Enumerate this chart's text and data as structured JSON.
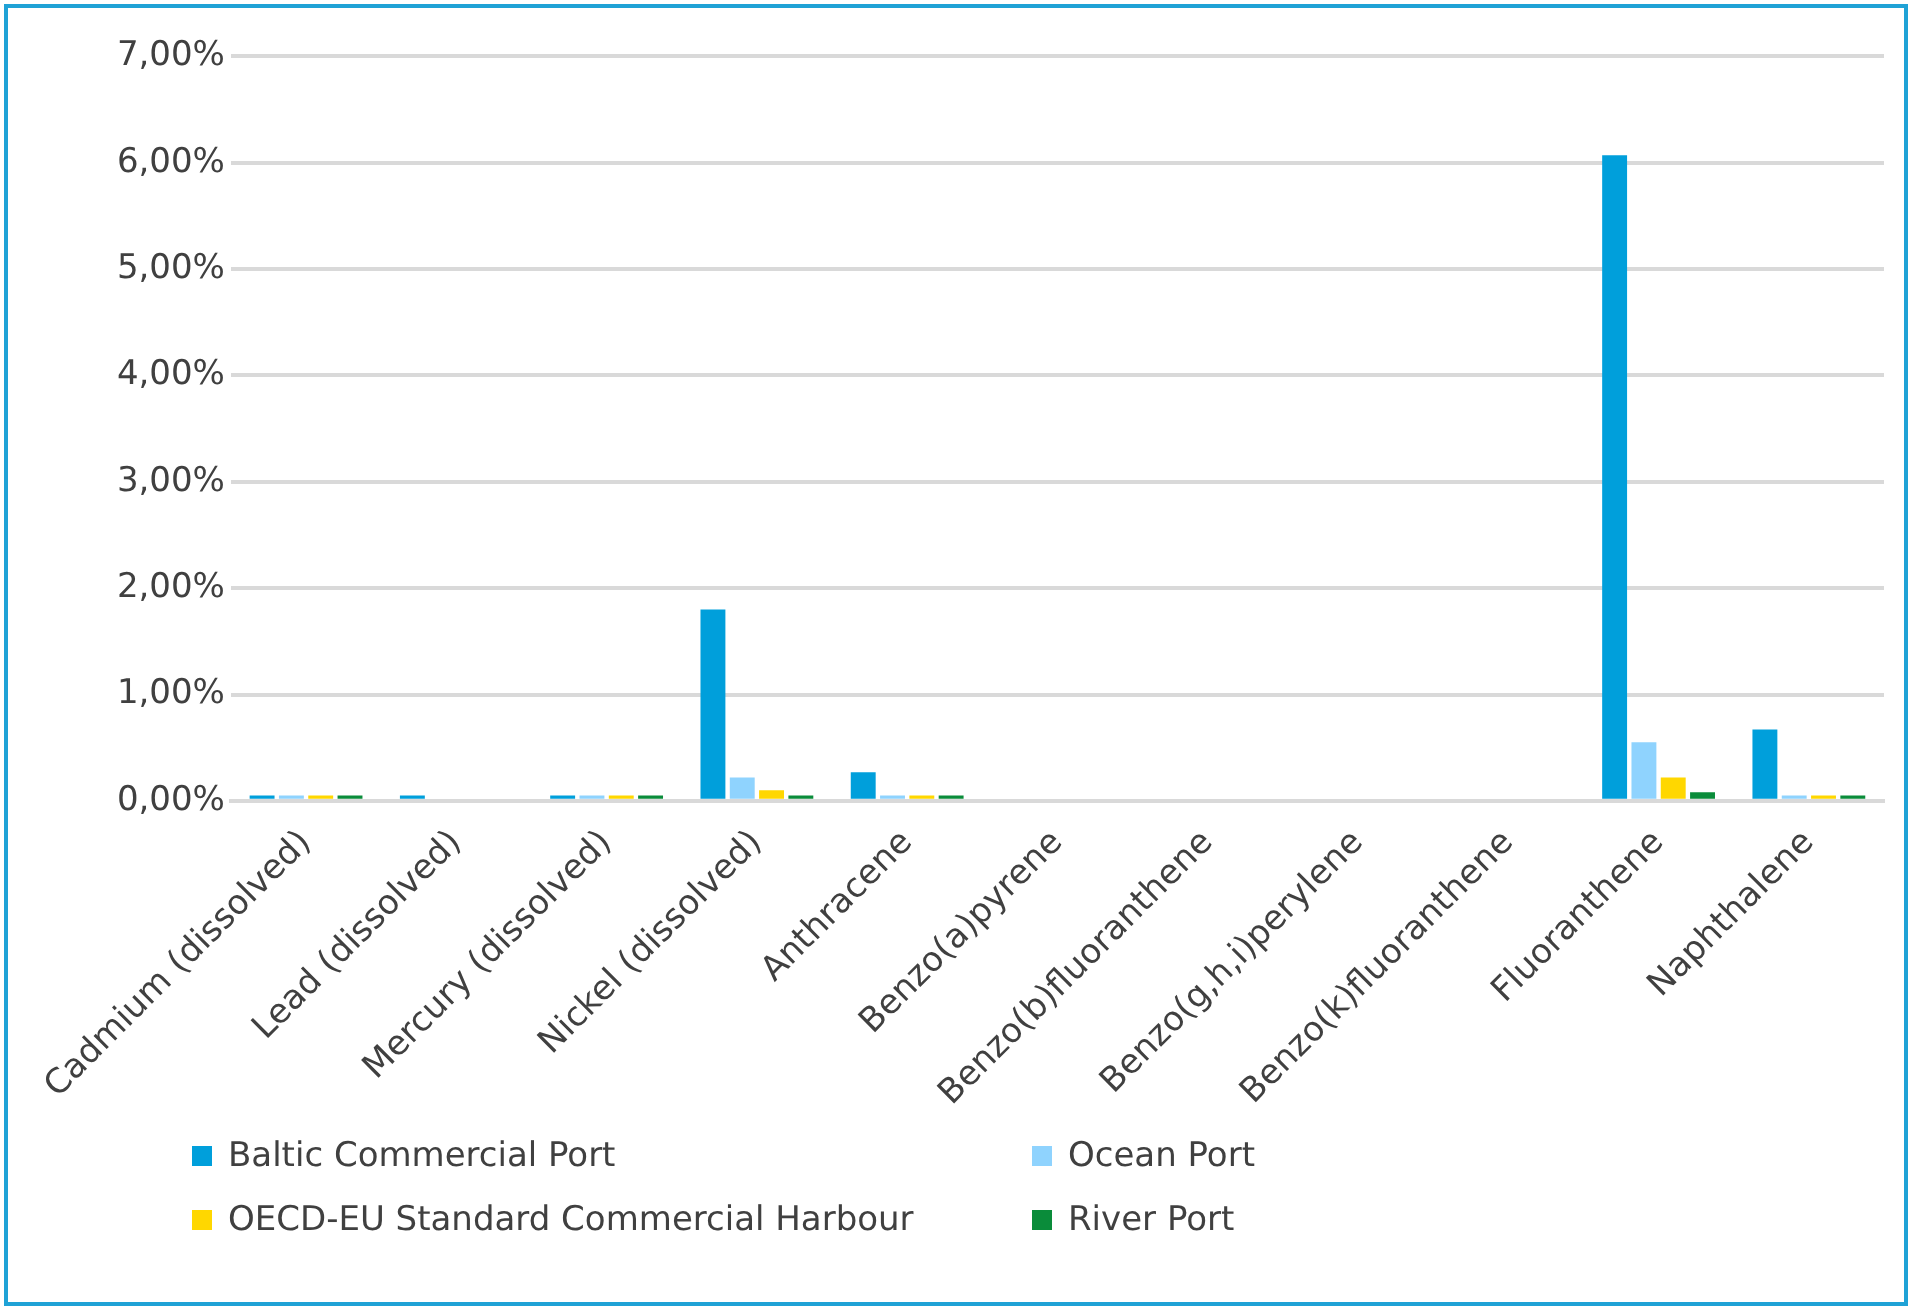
{
  "chart_data": {
    "type": "bar",
    "categories": [
      "Cadmium (dissolved)",
      "Lead (dissolved)",
      "Mercury (dissolved)",
      "Nickel (dissolved)",
      "Anthracene",
      "Benzo(a)pyrene",
      "Benzo(b)fluoranthene",
      "Benzo(g,h,i)perylene",
      "Benzo(k)fluoranthene",
      "Fluoranthene",
      "Naphthalene"
    ],
    "series": [
      {
        "name": "Baltic Commercial Port",
        "color": "#009fdb",
        "values": [
          0.05,
          0.05,
          0.05,
          1.8,
          0.27,
          0,
          0,
          0,
          0,
          6.07,
          0.67
        ]
      },
      {
        "name": "Ocean Port",
        "color": "#8fd3fe",
        "values": [
          0.05,
          0,
          0.05,
          0.22,
          0.05,
          0,
          0,
          0,
          0,
          0.55,
          0.05
        ]
      },
      {
        "name": "OECD-EU Standard Commercial Harbour",
        "color": "#ffd700",
        "values": [
          0.05,
          0,
          0.05,
          0.1,
          0.05,
          0,
          0,
          0,
          0,
          0.22,
          0.05
        ]
      },
      {
        "name": "River Port",
        "color": "#0a8c3a",
        "values": [
          0.05,
          0,
          0.05,
          0.05,
          0.05,
          0,
          0,
          0,
          0,
          0.08,
          0.05
        ]
      }
    ],
    "ylim": [
      0,
      7
    ],
    "yticks": [
      {
        "value": 0,
        "label": "0,00%"
      },
      {
        "value": 1,
        "label": "1,00%"
      },
      {
        "value": 2,
        "label": "2,00%"
      },
      {
        "value": 3,
        "label": "3,00%"
      },
      {
        "value": 4,
        "label": "4,00%"
      },
      {
        "value": 5,
        "label": "5,00%"
      },
      {
        "value": 6,
        "label": "6,00%"
      },
      {
        "value": 7,
        "label": "7,00%"
      }
    ],
    "grid": "y",
    "legend": "bottom"
  }
}
